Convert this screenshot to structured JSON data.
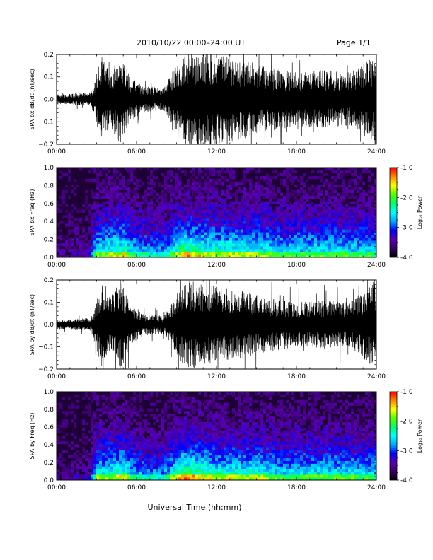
{
  "header": {
    "title": "2010/10/22  00:00–24:00 UT",
    "page_label": "Page 1/1"
  },
  "xaxis_label": "Universal Time (hh:mm)",
  "colorbar": {
    "label": "Log₁₀ Power",
    "ticks": [
      "-1.0",
      "-2.0",
      "-3.0",
      "-4.0"
    ],
    "tick_values": [
      -1.0,
      -2.0,
      -3.0,
      -4.0
    ],
    "range": [
      -4.0,
      -1.0
    ],
    "colors": [
      "#000000",
      "#3a0068",
      "#5a00b4",
      "#0000ff",
      "#00aaff",
      "#00ffff",
      "#00ff66",
      "#55ff00",
      "#ffff00",
      "#ff8800",
      "#ff0000"
    ]
  },
  "chart_data": [
    {
      "type": "line",
      "ylabel": "SPA bx dB/dt (nT/sec)",
      "x_ticks": [
        "00:00",
        "06:00",
        "12:00",
        "18:00",
        "24:00"
      ],
      "y_ticks": [
        "0.2",
        "0.1",
        "0.0",
        "−0.1",
        "−0.2"
      ],
      "y_tick_values": [
        0.2,
        0.1,
        0.0,
        -0.1,
        -0.2
      ],
      "xlim": [
        0,
        24
      ],
      "ylim": [
        -0.2,
        0.2
      ],
      "series_color": "#000000",
      "amplitude_profile": [
        [
          0,
          0.02
        ],
        [
          2.5,
          0.03
        ],
        [
          2.8,
          0.06
        ],
        [
          3.3,
          0.2
        ],
        [
          4.0,
          0.12
        ],
        [
          4.8,
          0.21
        ],
        [
          5.5,
          0.1
        ],
        [
          6.5,
          0.06
        ],
        [
          8.0,
          0.05
        ],
        [
          8.5,
          0.1
        ],
        [
          9.2,
          0.18
        ],
        [
          10.0,
          0.22
        ],
        [
          12.0,
          0.2
        ],
        [
          14.0,
          0.18
        ],
        [
          16.0,
          0.14
        ],
        [
          18.0,
          0.12
        ],
        [
          20.0,
          0.13
        ],
        [
          22.0,
          0.12
        ],
        [
          23.5,
          0.18
        ],
        [
          24,
          0.2
        ]
      ]
    },
    {
      "type": "heatmap",
      "ylabel": "SPA bx Freq (Hz)",
      "x_ticks": [
        "00:00",
        "06:00",
        "12:00",
        "18:00",
        "24:00"
      ],
      "y_ticks": [
        "1.0",
        "0.8",
        "0.6",
        "0.4",
        "0.2",
        "0.0"
      ],
      "y_tick_values": [
        1.0,
        0.8,
        0.6,
        0.4,
        0.2,
        0.0
      ],
      "xlim": [
        0,
        24
      ],
      "ylim": [
        0,
        1.0
      ],
      "zlim": [
        -4.0,
        -1.0
      ],
      "activity_profile": [
        [
          0,
          0.1
        ],
        [
          2.5,
          0.15
        ],
        [
          3.0,
          0.55
        ],
        [
          4.0,
          0.6
        ],
        [
          5.0,
          0.65
        ],
        [
          6.0,
          0.45
        ],
        [
          8.0,
          0.4
        ],
        [
          9.5,
          0.7
        ],
        [
          12.0,
          0.6
        ],
        [
          15.0,
          0.6
        ],
        [
          17.0,
          0.5
        ],
        [
          20.0,
          0.55
        ],
        [
          24,
          0.5
        ]
      ]
    },
    {
      "type": "line",
      "ylabel": "SPA by dB/dt (nT/sec)",
      "x_ticks": [
        "00:00",
        "06:00",
        "12:00",
        "18:00",
        "24:00"
      ],
      "y_ticks": [
        "0.2",
        "0.1",
        "0.0",
        "−0.1",
        "−0.2"
      ],
      "y_tick_values": [
        0.2,
        0.1,
        0.0,
        -0.1,
        -0.2
      ],
      "xlim": [
        0,
        24
      ],
      "ylim": [
        -0.2,
        0.2
      ],
      "series_color": "#000000",
      "amplitude_profile": [
        [
          0,
          0.02
        ],
        [
          2.5,
          0.03
        ],
        [
          2.8,
          0.06
        ],
        [
          3.3,
          0.2
        ],
        [
          4.0,
          0.12
        ],
        [
          4.8,
          0.21
        ],
        [
          5.5,
          0.1
        ],
        [
          6.5,
          0.05
        ],
        [
          8.0,
          0.04
        ],
        [
          8.5,
          0.08
        ],
        [
          9.2,
          0.16
        ],
        [
          10.0,
          0.2
        ],
        [
          12.0,
          0.18
        ],
        [
          14.0,
          0.15
        ],
        [
          16.0,
          0.12
        ],
        [
          18.0,
          0.1
        ],
        [
          20.0,
          0.11
        ],
        [
          22.0,
          0.1
        ],
        [
          23.5,
          0.18
        ],
        [
          24,
          0.2
        ]
      ]
    },
    {
      "type": "heatmap",
      "ylabel": "SPA by Freq (Hz)",
      "x_ticks": [
        "00:00",
        "06:00",
        "12:00",
        "18:00",
        "24:00"
      ],
      "y_ticks": [
        "1.0",
        "0.8",
        "0.6",
        "0.4",
        "0.2",
        "0.0"
      ],
      "y_tick_values": [
        1.0,
        0.8,
        0.6,
        0.4,
        0.2,
        0.0
      ],
      "xlim": [
        0,
        24
      ],
      "ylim": [
        0,
        1.0
      ],
      "zlim": [
        -4.0,
        -1.0
      ],
      "activity_profile": [
        [
          0,
          0.1
        ],
        [
          2.5,
          0.15
        ],
        [
          3.0,
          0.55
        ],
        [
          4.0,
          0.6
        ],
        [
          5.0,
          0.65
        ],
        [
          6.0,
          0.45
        ],
        [
          8.0,
          0.4
        ],
        [
          9.5,
          0.75
        ],
        [
          12.0,
          0.6
        ],
        [
          15.0,
          0.6
        ],
        [
          17.0,
          0.5
        ],
        [
          20.0,
          0.55
        ],
        [
          24,
          0.5
        ]
      ]
    }
  ]
}
